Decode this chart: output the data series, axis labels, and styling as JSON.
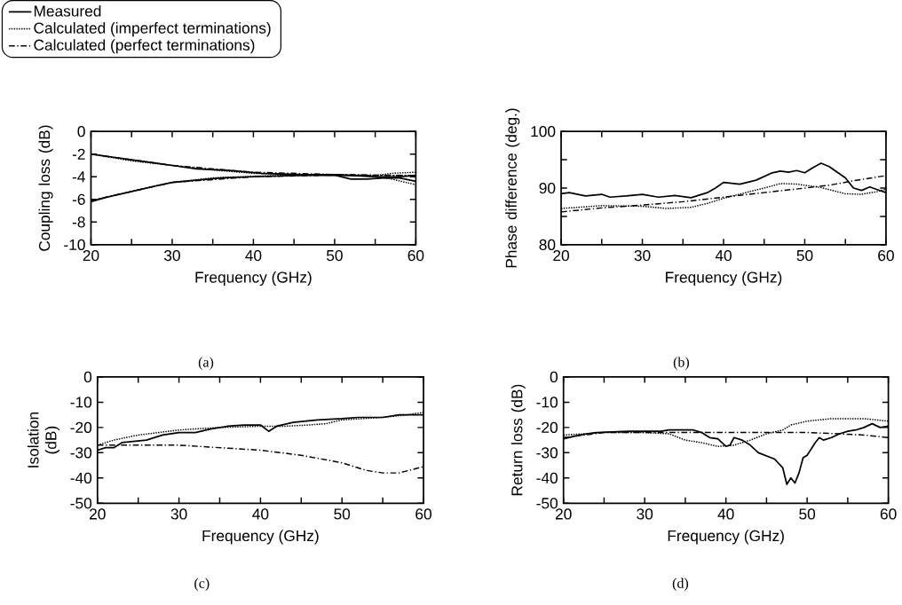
{
  "chart_data": [
    {
      "type": "line",
      "xlabel": "Frequency (GHz)",
      "ylabel": "Coupling loss (dB)",
      "xlim": [
        20,
        60
      ],
      "ylim": [
        -10,
        0
      ],
      "xticks": [
        20,
        {
          "value": 25,
          "label": null
        },
        30,
        {
          "value": 35,
          "label": null
        },
        40,
        {
          "value": 45,
          "label": null
        },
        50,
        {
          "value": 55,
          "label": null
        },
        60
      ],
      "yticks": [
        -10,
        -8,
        -6,
        -4,
        -2,
        0
      ],
      "legend": "top left",
      "annotations": [
        "(a)"
      ],
      "series": [
        {
          "name": "Measured",
          "color": "#000000",
          "line_style": "solid",
          "x": [
            20,
            22,
            25,
            28,
            30,
            33,
            36,
            38,
            41,
            45,
            50,
            52,
            55,
            58,
            60
          ],
          "values": [
            -2.0,
            -2.2,
            -2.5,
            -2.8,
            -3.0,
            -3.3,
            -3.4,
            -3.5,
            -3.7,
            -3.8,
            -3.85,
            -3.9,
            -4.0,
            -4.0,
            -3.9
          ]
        },
        {
          "name": "Calculated (imperfect terminations)",
          "color": "#000000",
          "line_style": "dotted",
          "x": [
            20,
            25,
            30,
            35,
            40,
            45,
            50,
            55,
            57,
            60
          ],
          "values": [
            -2.0,
            -2.6,
            -3.0,
            -3.4,
            -3.7,
            -3.8,
            -3.8,
            -3.9,
            -3.7,
            -3.6
          ]
        },
        {
          "name": "Calculated (perfect terminations)",
          "color": "#000000",
          "line_style": "dashdot",
          "x": [
            20,
            30,
            40,
            50,
            60
          ],
          "values": [
            -2.0,
            -3.0,
            -3.6,
            -3.8,
            -3.9
          ]
        },
        {
          "color": "#000000",
          "line_style": "solid",
          "x": [
            20,
            22,
            25,
            28,
            30,
            33,
            36,
            40,
            45,
            50,
            52,
            54,
            56,
            58,
            60
          ],
          "values": [
            -6.2,
            -5.8,
            -5.3,
            -4.8,
            -4.5,
            -4.3,
            -4.1,
            -4.0,
            -3.9,
            -3.85,
            -4.2,
            -4.2,
            -4.1,
            -4.1,
            -4.4
          ]
        },
        {
          "color": "#000000",
          "line_style": "dotted",
          "x": [
            20,
            25,
            30,
            35,
            40,
            45,
            50,
            55,
            57,
            60
          ],
          "values": [
            -6.1,
            -5.3,
            -4.5,
            -4.1,
            -3.95,
            -3.85,
            -3.8,
            -4.0,
            -4.2,
            -4.7
          ]
        },
        {
          "color": "#000000",
          "line_style": "dashdot",
          "x": [
            20,
            30,
            40,
            50,
            60
          ],
          "values": [
            -6.1,
            -4.5,
            -4.0,
            -3.85,
            -3.9
          ]
        }
      ]
    },
    {
      "type": "line",
      "xlabel": "Frequency (GHz)",
      "ylabel": "Phase difference (deg.)",
      "xlim": [
        20,
        60
      ],
      "ylim": [
        80,
        100
      ],
      "xticks": [
        20,
        {
          "value": 25,
          "label": null
        },
        30,
        {
          "value": 35,
          "label": null
        },
        40,
        {
          "value": 45,
          "label": null
        },
        50,
        {
          "value": 55,
          "label": null
        },
        60
      ],
      "yticks": [
        80,
        {
          "value": 85,
          "label": null
        },
        90,
        {
          "value": 95,
          "label": null
        },
        100
      ],
      "annotations": [
        "(b)"
      ],
      "series": [
        {
          "color": "#000000",
          "line_style": "solid",
          "x": [
            20,
            21,
            23,
            25,
            26,
            28,
            30,
            32,
            34,
            36,
            38,
            39,
            40,
            42,
            44,
            46,
            47,
            48,
            49,
            50,
            51,
            52,
            53,
            55,
            56,
            57,
            58,
            59,
            60
          ],
          "values": [
            89.0,
            89.2,
            88.6,
            88.9,
            88.4,
            88.6,
            88.9,
            88.4,
            88.7,
            88.3,
            89.2,
            90.0,
            91.0,
            90.7,
            91.4,
            92.7,
            93.0,
            92.8,
            93.1,
            92.7,
            93.6,
            94.4,
            93.8,
            91.8,
            90.0,
            89.6,
            90.2,
            89.7,
            89.2
          ]
        },
        {
          "color": "#000000",
          "line_style": "dotted",
          "x": [
            20,
            25,
            30,
            33,
            36,
            38,
            40,
            43,
            45,
            47,
            49,
            52,
            55,
            57,
            59,
            60
          ],
          "values": [
            86.4,
            86.9,
            86.8,
            86.4,
            86.6,
            87.3,
            88.2,
            89.3,
            90.0,
            90.8,
            90.7,
            90.1,
            89.0,
            88.9,
            89.4,
            89.8
          ]
        },
        {
          "color": "#000000",
          "line_style": "dashdot",
          "x": [
            20,
            25,
            30,
            35,
            40,
            45,
            50,
            53,
            56,
            60
          ],
          "values": [
            85.8,
            86.5,
            87.0,
            87.6,
            88.4,
            89.2,
            90.0,
            90.5,
            91.3,
            92.2
          ]
        }
      ]
    },
    {
      "type": "line",
      "xlabel": "Frequency (GHz)",
      "ylabel": "Isolation (dB)",
      "xlim": [
        20,
        60
      ],
      "ylim": [
        -50,
        0
      ],
      "xticks": [
        20,
        {
          "value": 25,
          "label": null
        },
        30,
        {
          "value": 35,
          "label": null
        },
        40,
        {
          "value": 45,
          "label": null
        },
        50,
        {
          "value": 55,
          "label": null
        },
        60
      ],
      "yticks": [
        -50,
        -40,
        -30,
        -20,
        -10,
        0
      ],
      "annotations": [
        "(c)"
      ],
      "series": [
        {
          "color": "#000000",
          "line_style": "solid",
          "x": [
            20,
            21,
            22,
            23,
            26,
            28,
            30,
            32,
            34,
            36,
            38,
            40,
            41,
            42,
            44,
            47,
            50,
            52,
            55,
            57,
            60
          ],
          "values": [
            -29,
            -28,
            -28,
            -26,
            -25,
            -23,
            -22,
            -22,
            -20.5,
            -19.5,
            -19,
            -19,
            -21.5,
            -19.5,
            -18,
            -17,
            -16.5,
            -16,
            -16,
            -15,
            -15
          ]
        },
        {
          "color": "#000000",
          "line_style": "dotted",
          "x": [
            20,
            22,
            25,
            30,
            35,
            40,
            43,
            46,
            48,
            50,
            55,
            58,
            60
          ],
          "values": [
            -27,
            -25,
            -23,
            -21,
            -20,
            -19.5,
            -19.5,
            -19,
            -18.5,
            -17,
            -16,
            -15,
            -14
          ]
        },
        {
          "color": "#000000",
          "line_style": "dashdot",
          "x": [
            20,
            25,
            30,
            35,
            40,
            45,
            50,
            53,
            55,
            57,
            60
          ],
          "values": [
            -27,
            -27,
            -27,
            -28,
            -29,
            -31,
            -34,
            -37,
            -38,
            -38,
            -35.5
          ]
        }
      ]
    },
    {
      "type": "line",
      "xlabel": "Frequency (GHz)",
      "ylabel": "Return loss (dB)",
      "xlim": [
        20,
        60
      ],
      "ylim": [
        -50,
        0
      ],
      "xticks": [
        20,
        {
          "value": 25,
          "label": null
        },
        30,
        {
          "value": 35,
          "label": null
        },
        40,
        {
          "value": 45,
          "label": null
        },
        50,
        {
          "value": 55,
          "label": null
        },
        60
      ],
      "yticks": [
        -50,
        -40,
        -30,
        -20,
        -10,
        0
      ],
      "annotations": [
        "(d)"
      ],
      "series": [
        {
          "color": "#000000",
          "line_style": "solid",
          "x": [
            20,
            22,
            24,
            28,
            32,
            33,
            36,
            37,
            38,
            39,
            40,
            40.5,
            41,
            42,
            43,
            44,
            46,
            47,
            47.5,
            48,
            48.5,
            49,
            49.5,
            50,
            51,
            51.5,
            52,
            53,
            54,
            55,
            56,
            57,
            58,
            59,
            60
          ],
          "values": [
            -24.5,
            -23,
            -22,
            -21.5,
            -21.5,
            -21,
            -21,
            -22,
            -24,
            -24.5,
            -27.5,
            -27,
            -24,
            -25,
            -27,
            -30,
            -32.5,
            -36,
            -42.5,
            -40,
            -42,
            -38,
            -32,
            -31,
            -26,
            -24,
            -25,
            -24,
            -22.5,
            -21.5,
            -21,
            -20,
            -18.5,
            -20,
            -19.5
          ]
        },
        {
          "color": "#000000",
          "line_style": "dotted",
          "x": [
            20,
            25,
            30,
            33,
            35,
            37,
            39,
            41,
            43,
            45,
            47,
            48,
            50,
            53,
            57,
            60
          ],
          "values": [
            -23,
            -22,
            -22,
            -22.5,
            -25,
            -26,
            -27.5,
            -27,
            -25,
            -22.5,
            -21,
            -19,
            -17.5,
            -16.5,
            -16.5,
            -17.5
          ]
        },
        {
          "color": "#000000",
          "line_style": "dashdot",
          "x": [
            20,
            25,
            30,
            40,
            50,
            54,
            57,
            60
          ],
          "values": [
            -24,
            -22,
            -22,
            -22,
            -22,
            -22.5,
            -23,
            -24
          ]
        }
      ]
    }
  ]
}
